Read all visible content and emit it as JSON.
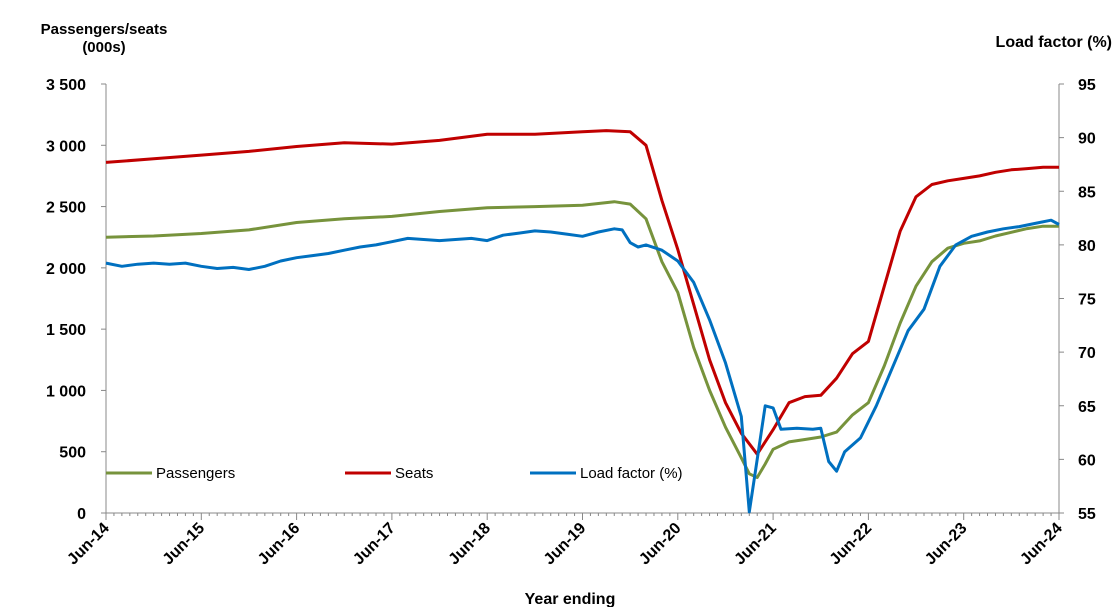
{
  "chart_data": {
    "type": "line",
    "title": "",
    "ylabel_left": [
      "Passengers/seats",
      "(000s)"
    ],
    "ylabel_right": "Load factor (%)",
    "xlabel": "Year ending",
    "x_ticks": [
      "Jun-14",
      "Jun-15",
      "Jun-16",
      "Jun-17",
      "Jun-18",
      "Jun-19",
      "Jun-20",
      "Jun-21",
      "Jun-22",
      "Jun-23",
      "Jun-24"
    ],
    "ylim_left": [
      0,
      3500
    ],
    "ylim_right": [
      55,
      95
    ],
    "y_ticks_left": [
      "0",
      "500",
      "1 000",
      "1 500",
      "2 000",
      "2 500",
      "3 000",
      "3 500"
    ],
    "y_ticks_right": [
      "55",
      "60",
      "65",
      "70",
      "75",
      "80",
      "85",
      "90",
      "95"
    ],
    "x_range": [
      "2014-06",
      "2024-06"
    ],
    "legend_position": "bottom-left",
    "grid": false,
    "series": [
      {
        "name": "Passengers",
        "axis": "left",
        "color": "#77933C",
        "points": [
          [
            "2014-06",
            2250
          ],
          [
            "2014-12",
            2260
          ],
          [
            "2015-06",
            2280
          ],
          [
            "2015-12",
            2310
          ],
          [
            "2016-06",
            2370
          ],
          [
            "2016-12",
            2400
          ],
          [
            "2017-06",
            2420
          ],
          [
            "2017-12",
            2460
          ],
          [
            "2018-06",
            2490
          ],
          [
            "2018-12",
            2500
          ],
          [
            "2019-06",
            2510
          ],
          [
            "2019-10",
            2540
          ],
          [
            "2019-12",
            2520
          ],
          [
            "2020-02",
            2400
          ],
          [
            "2020-04",
            2050
          ],
          [
            "2020-06",
            1800
          ],
          [
            "2020-08",
            1350
          ],
          [
            "2020-10",
            1000
          ],
          [
            "2020-12",
            700
          ],
          [
            "2021-02",
            450
          ],
          [
            "2021-03",
            320
          ],
          [
            "2021-04",
            290
          ],
          [
            "2021-05",
            400
          ],
          [
            "2021-06",
            520
          ],
          [
            "2021-08",
            580
          ],
          [
            "2021-10",
            600
          ],
          [
            "2021-12",
            620
          ],
          [
            "2022-02",
            660
          ],
          [
            "2022-04",
            800
          ],
          [
            "2022-06",
            900
          ],
          [
            "2022-08",
            1200
          ],
          [
            "2022-10",
            1550
          ],
          [
            "2022-12",
            1850
          ],
          [
            "2023-02",
            2050
          ],
          [
            "2023-04",
            2160
          ],
          [
            "2023-06",
            2200
          ],
          [
            "2023-08",
            2220
          ],
          [
            "2023-10",
            2260
          ],
          [
            "2023-12",
            2290
          ],
          [
            "2024-02",
            2320
          ],
          [
            "2024-04",
            2340
          ],
          [
            "2024-06",
            2340
          ]
        ]
      },
      {
        "name": "Seats",
        "axis": "left",
        "color": "#C00000",
        "points": [
          [
            "2014-06",
            2860
          ],
          [
            "2014-12",
            2890
          ],
          [
            "2015-06",
            2920
          ],
          [
            "2015-12",
            2950
          ],
          [
            "2016-06",
            2990
          ],
          [
            "2016-12",
            3020
          ],
          [
            "2017-06",
            3010
          ],
          [
            "2017-12",
            3040
          ],
          [
            "2018-06",
            3090
          ],
          [
            "2018-12",
            3090
          ],
          [
            "2019-06",
            3110
          ],
          [
            "2019-09",
            3120
          ],
          [
            "2019-12",
            3110
          ],
          [
            "2020-02",
            3000
          ],
          [
            "2020-04",
            2550
          ],
          [
            "2020-06",
            2150
          ],
          [
            "2020-08",
            1700
          ],
          [
            "2020-10",
            1250
          ],
          [
            "2020-12",
            900
          ],
          [
            "2021-02",
            650
          ],
          [
            "2021-04",
            480
          ],
          [
            "2021-06",
            680
          ],
          [
            "2021-08",
            900
          ],
          [
            "2021-10",
            950
          ],
          [
            "2021-12",
            960
          ],
          [
            "2022-02",
            1100
          ],
          [
            "2022-04",
            1300
          ],
          [
            "2022-06",
            1400
          ],
          [
            "2022-08",
            1850
          ],
          [
            "2022-10",
            2300
          ],
          [
            "2022-12",
            2580
          ],
          [
            "2023-02",
            2680
          ],
          [
            "2023-04",
            2710
          ],
          [
            "2023-06",
            2730
          ],
          [
            "2023-08",
            2750
          ],
          [
            "2023-10",
            2780
          ],
          [
            "2023-12",
            2800
          ],
          [
            "2024-02",
            2810
          ],
          [
            "2024-04",
            2820
          ],
          [
            "2024-06",
            2820
          ]
        ]
      },
      {
        "name": "Load factor (%)",
        "axis": "right",
        "color": "#0070C0",
        "points": [
          [
            "2014-06",
            78.3
          ],
          [
            "2014-08",
            78.0
          ],
          [
            "2014-10",
            78.2
          ],
          [
            "2014-12",
            78.3
          ],
          [
            "2015-02",
            78.2
          ],
          [
            "2015-04",
            78.3
          ],
          [
            "2015-06",
            78.0
          ],
          [
            "2015-08",
            77.8
          ],
          [
            "2015-10",
            77.9
          ],
          [
            "2015-12",
            77.7
          ],
          [
            "2016-02",
            78.0
          ],
          [
            "2016-04",
            78.5
          ],
          [
            "2016-06",
            78.8
          ],
          [
            "2016-08",
            79.0
          ],
          [
            "2016-10",
            79.2
          ],
          [
            "2016-12",
            79.5
          ],
          [
            "2017-02",
            79.8
          ],
          [
            "2017-04",
            80.0
          ],
          [
            "2017-06",
            80.3
          ],
          [
            "2017-08",
            80.6
          ],
          [
            "2017-10",
            80.5
          ],
          [
            "2017-12",
            80.4
          ],
          [
            "2018-02",
            80.5
          ],
          [
            "2018-04",
            80.6
          ],
          [
            "2018-06",
            80.4
          ],
          [
            "2018-08",
            80.9
          ],
          [
            "2018-10",
            81.1
          ],
          [
            "2018-12",
            81.3
          ],
          [
            "2019-02",
            81.2
          ],
          [
            "2019-04",
            81.0
          ],
          [
            "2019-06",
            80.8
          ],
          [
            "2019-08",
            81.2
          ],
          [
            "2019-10",
            81.5
          ],
          [
            "2019-11",
            81.4
          ],
          [
            "2019-12",
            80.2
          ],
          [
            "2020-01",
            79.8
          ],
          [
            "2020-02",
            80.0
          ],
          [
            "2020-04",
            79.5
          ],
          [
            "2020-06",
            78.5
          ],
          [
            "2020-08",
            76.5
          ],
          [
            "2020-10",
            73.0
          ],
          [
            "2020-12",
            69.0
          ],
          [
            "2021-02",
            64.0
          ],
          [
            "2021-03",
            55.1
          ],
          [
            "2021-04",
            60.0
          ],
          [
            "2021-05",
            65.0
          ],
          [
            "2021-06",
            64.8
          ],
          [
            "2021-07",
            62.8
          ],
          [
            "2021-09",
            62.9
          ],
          [
            "2021-11",
            62.8
          ],
          [
            "2021-12",
            62.9
          ],
          [
            "2022-01",
            59.8
          ],
          [
            "2022-02",
            58.9
          ],
          [
            "2022-03",
            60.7
          ],
          [
            "2022-05",
            62.0
          ],
          [
            "2022-07",
            65.0
          ],
          [
            "2022-09",
            68.5
          ],
          [
            "2022-11",
            72.0
          ],
          [
            "2023-01",
            74.0
          ],
          [
            "2023-03",
            78.0
          ],
          [
            "2023-05",
            80.0
          ],
          [
            "2023-07",
            80.8
          ],
          [
            "2023-09",
            81.2
          ],
          [
            "2023-11",
            81.5
          ],
          [
            "2024-01",
            81.7
          ],
          [
            "2024-03",
            82.0
          ],
          [
            "2024-05",
            82.3
          ],
          [
            "2024-06",
            81.9
          ]
        ]
      }
    ]
  }
}
